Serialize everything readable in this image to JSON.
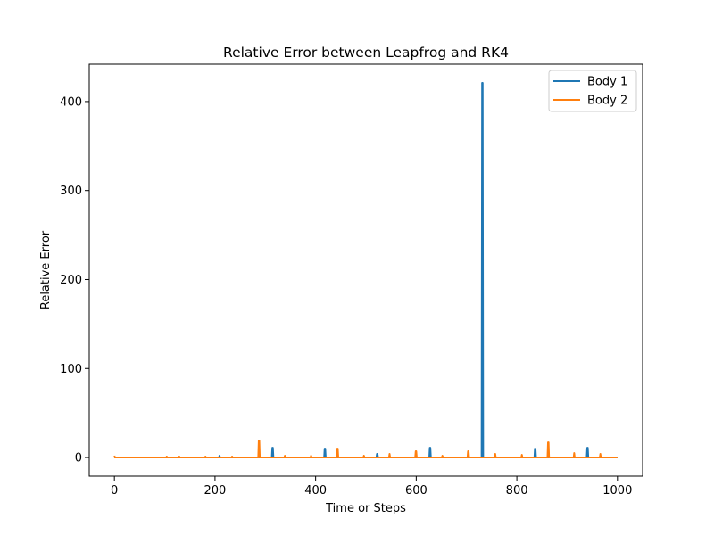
{
  "chart_data": {
    "type": "line",
    "title": "Relative Error between Leapfrog and RK4",
    "xlabel": "Time or Steps",
    "ylabel": "Relative Error",
    "xlim": [
      -50,
      1050
    ],
    "ylim": [
      -21,
      442
    ],
    "xticks": [
      0,
      200,
      400,
      600,
      800,
      1000
    ],
    "yticks": [
      0,
      100,
      200,
      300,
      400
    ],
    "grid": false,
    "legend_position": "top-right",
    "series": [
      {
        "name": "Body 1",
        "color": "#1f77b4",
        "x": [
          0,
          208,
          209,
          210,
          313,
          314,
          315,
          316,
          417,
          418,
          419,
          420,
          521,
          522,
          523,
          524,
          626,
          627,
          628,
          629,
          730,
          731,
          732,
          733,
          734,
          835,
          836,
          837,
          838,
          939,
          940,
          941,
          942,
          1000
        ],
        "y": [
          0,
          0,
          2,
          0,
          0,
          11,
          11,
          0,
          0,
          10,
          10,
          0,
          0,
          4,
          4,
          0,
          0,
          11,
          11,
          0,
          0,
          421,
          421,
          0,
          0,
          0,
          10,
          10,
          0,
          0,
          11,
          11,
          0,
          0
        ]
      },
      {
        "name": "Body 2",
        "color": "#ff7f0e",
        "x": [
          0,
          1,
          2,
          103,
          104,
          105,
          128,
          129,
          130,
          180,
          181,
          182,
          233,
          234,
          235,
          286,
          287,
          288,
          289,
          338,
          339,
          340,
          390,
          391,
          392,
          442,
          443,
          444,
          445,
          495,
          496,
          497,
          546,
          547,
          548,
          598,
          599,
          600,
          601,
          651,
          652,
          653,
          702,
          703,
          704,
          705,
          756,
          757,
          758,
          809,
          810,
          811,
          861,
          862,
          863,
          864,
          913,
          914,
          915,
          965,
          966,
          967,
          1000
        ],
        "y": [
          2,
          0,
          0,
          0,
          1,
          0,
          0,
          1,
          0,
          0,
          1,
          0,
          0,
          1,
          0,
          0,
          19,
          19,
          0,
          0,
          2,
          0,
          0,
          2,
          0,
          0,
          10,
          10,
          0,
          0,
          2,
          0,
          0,
          4,
          0,
          0,
          7,
          7,
          0,
          0,
          2,
          0,
          0,
          7,
          7,
          0,
          0,
          4,
          0,
          0,
          3,
          0,
          0,
          17,
          17,
          0,
          0,
          5,
          0,
          0,
          4,
          0,
          0
        ]
      }
    ]
  }
}
